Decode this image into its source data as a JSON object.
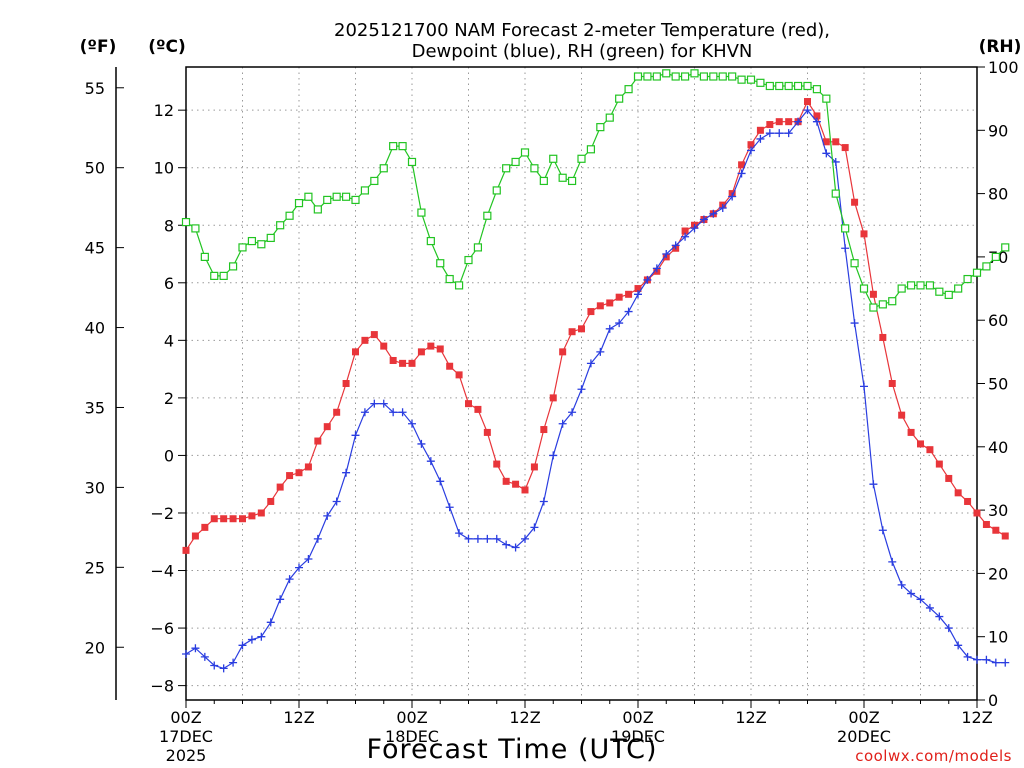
{
  "chart_data": {
    "type": "line",
    "title_line1": "2025121700 NAM Forecast 2-meter Temperature (red),",
    "title_line2": "Dewpoint (blue), RH (green) for KHVN",
    "unit_f": "(ºF)",
    "unit_c": "(ºC)",
    "unit_rh": "(RH)",
    "xlabel": "Forecast Time (UTC)",
    "credit": "coolwx.com/models",
    "x_range_hours": [
      0,
      72
    ],
    "ylim_c": [
      -8.5,
      13.5
    ],
    "ylim_rh": [
      0,
      100
    ],
    "x_ticks": [
      {
        "hour": 0,
        "label": "00Z",
        "date": "17DEC",
        "year": "2025"
      },
      {
        "hour": 12,
        "label": "12Z",
        "date": "",
        "year": ""
      },
      {
        "hour": 24,
        "label": "00Z",
        "date": "18DEC",
        "year": ""
      },
      {
        "hour": 36,
        "label": "12Z",
        "date": "",
        "year": ""
      },
      {
        "hour": 48,
        "label": "00Z",
        "date": "19DEC",
        "year": ""
      },
      {
        "hour": 60,
        "label": "12Z",
        "date": "",
        "year": ""
      },
      {
        "hour": 72,
        "label": "00Z",
        "date": "20DEC",
        "year": ""
      },
      {
        "hour": 84,
        "label": "12Z",
        "date": "",
        "year": ""
      }
    ],
    "c_ticks": [
      {
        "value": 12,
        "label": "12"
      },
      {
        "value": 10,
        "label": "10"
      },
      {
        "value": 8,
        "label": "8"
      },
      {
        "value": 6,
        "label": "6"
      },
      {
        "value": 4,
        "label": "4"
      },
      {
        "value": 2,
        "label": "2"
      },
      {
        "value": 0,
        "label": "0"
      },
      {
        "value": -2,
        "label": "−2"
      },
      {
        "value": -4,
        "label": "−4"
      },
      {
        "value": -6,
        "label": "−6"
      },
      {
        "value": -8,
        "label": "−8"
      }
    ],
    "f_ticks": [
      {
        "value": 55,
        "label": "55"
      },
      {
        "value": 50,
        "label": "50"
      },
      {
        "value": 45,
        "label": "45"
      },
      {
        "value": 40,
        "label": "40"
      },
      {
        "value": 35,
        "label": "35"
      },
      {
        "value": 30,
        "label": "30"
      },
      {
        "value": 25,
        "label": "25"
      },
      {
        "value": 20,
        "label": "20"
      }
    ],
    "rh_ticks": [
      {
        "value": 100,
        "label": "100"
      },
      {
        "value": 90,
        "label": "90"
      },
      {
        "value": 80,
        "label": "80"
      },
      {
        "value": 70,
        "label": "70"
      },
      {
        "value": 60,
        "label": "60"
      },
      {
        "value": 50,
        "label": "50"
      },
      {
        "value": 40,
        "label": "40"
      },
      {
        "value": 30,
        "label": "30"
      },
      {
        "value": 20,
        "label": "20"
      },
      {
        "value": 10,
        "label": "10"
      },
      {
        "value": 0,
        "label": "0"
      }
    ],
    "hour_step": 1,
    "series": [
      {
        "key": "temperature",
        "color": "#e8353a",
        "marker": "filled-square",
        "axis": "c",
        "values": [
          -3.3,
          -2.8,
          -2.5,
          -2.2,
          -2.2,
          -2.2,
          -2.2,
          -2.1,
          -2.0,
          -1.6,
          -1.1,
          -0.7,
          -0.6,
          -0.4,
          0.5,
          1.0,
          1.5,
          2.5,
          3.6,
          4.0,
          4.2,
          3.8,
          3.3,
          3.2,
          3.2,
          3.6,
          3.8,
          3.7,
          3.1,
          2.8,
          1.8,
          1.6,
          0.8,
          -0.3,
          -0.9,
          -1.0,
          -1.2,
          -0.4,
          0.9,
          2.0,
          3.6,
          4.3,
          4.4,
          5.0,
          5.2,
          5.3,
          5.5,
          5.6,
          5.8,
          6.1,
          6.4,
          6.9,
          7.2,
          7.8,
          8.0,
          8.2,
          8.4,
          8.7,
          9.1,
          10.1,
          10.8,
          11.3,
          11.5,
          11.6,
          11.6,
          11.6,
          12.3,
          11.8,
          10.9,
          10.9,
          10.7,
          8.8,
          7.7,
          5.6,
          4.1,
          2.5,
          1.4,
          0.8,
          0.4,
          0.2,
          -0.3,
          -0.8,
          -1.3,
          -1.6,
          -2.0,
          -2.4,
          -2.6,
          -2.8
        ]
      },
      {
        "key": "dewpoint",
        "color": "#2a3de0",
        "marker": "plus",
        "axis": "c",
        "values": [
          -6.9,
          -6.7,
          -7.0,
          -7.3,
          -7.4,
          -7.2,
          -6.6,
          -6.4,
          -6.3,
          -5.8,
          -5.0,
          -4.3,
          -3.9,
          -3.6,
          -2.9,
          -2.1,
          -1.6,
          -0.6,
          0.7,
          1.5,
          1.8,
          1.8,
          1.5,
          1.5,
          1.1,
          0.4,
          -0.2,
          -0.9,
          -1.8,
          -2.7,
          -2.9,
          -2.9,
          -2.9,
          -2.9,
          -3.1,
          -3.2,
          -2.9,
          -2.5,
          -1.6,
          0.0,
          1.1,
          1.5,
          2.3,
          3.2,
          3.6,
          4.4,
          4.6,
          5.0,
          5.6,
          6.1,
          6.5,
          7.0,
          7.3,
          7.6,
          7.9,
          8.2,
          8.4,
          8.6,
          9.0,
          9.8,
          10.6,
          11.0,
          11.2,
          11.2,
          11.2,
          11.6,
          12.0,
          11.6,
          10.5,
          10.2,
          7.2,
          4.6,
          2.4,
          -1.0,
          -2.6,
          -3.7,
          -4.5,
          -4.8,
          -5.0,
          -5.3,
          -5.6,
          -6.0,
          -6.6,
          -7.0,
          -7.1,
          -7.1,
          -7.2,
          -7.2
        ]
      },
      {
        "key": "rh",
        "color": "#22c422",
        "marker": "open-square",
        "axis": "rh",
        "values": [
          75.5,
          74.5,
          70.0,
          67.0,
          67.0,
          68.5,
          71.5,
          72.5,
          72.0,
          73.0,
          75.0,
          76.5,
          78.5,
          79.5,
          77.5,
          79.0,
          79.5,
          79.5,
          79.0,
          80.5,
          82.0,
          84.0,
          87.5,
          87.5,
          85.0,
          77.0,
          72.5,
          69.0,
          66.5,
          65.5,
          69.5,
          71.5,
          76.5,
          80.5,
          84.0,
          85.0,
          86.5,
          84.0,
          82.0,
          85.5,
          82.5,
          82.0,
          85.5,
          87.0,
          90.5,
          92.0,
          95.0,
          96.5,
          98.5,
          98.5,
          98.5,
          99.0,
          98.5,
          98.5,
          99.0,
          98.5,
          98.5,
          98.5,
          98.5,
          98.0,
          98.0,
          97.5,
          97.0,
          97.0,
          97.0,
          97.0,
          97.0,
          96.5,
          95.0,
          80.0,
          74.5,
          69.0,
          65.0,
          62.0,
          62.5,
          63.0,
          65.0,
          65.5,
          65.5,
          65.5,
          64.5,
          64.0,
          65.0,
          66.5,
          67.5,
          68.5,
          70.0,
          71.5
        ]
      }
    ]
  }
}
